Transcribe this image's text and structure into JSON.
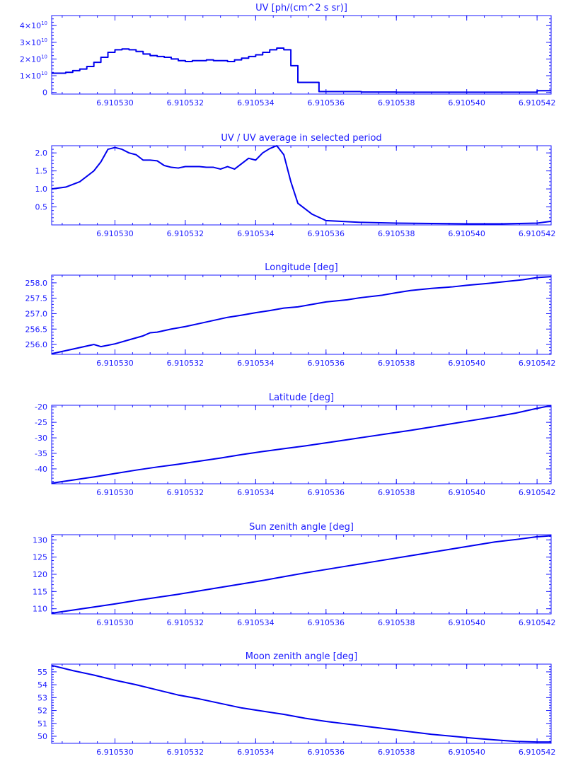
{
  "chart_data": [
    {
      "type": "line",
      "title": "UV [ph/(cm^2 s sr)]",
      "step": true,
      "xlim": [
        6.9105282,
        6.9105424
      ],
      "ylim": [
        -1000000000.0,
        46000000000.0
      ],
      "xticks": [
        6.91053,
        6.910532,
        6.910534,
        6.910536,
        6.910538,
        6.91054,
        6.910542
      ],
      "xtick_labels": [
        "6.910530",
        "6.910532",
        "6.910534",
        "6.910536",
        "6.910538",
        "6.910540",
        "6.910542"
      ],
      "yticks": [
        0,
        10000000000.0,
        20000000000.0,
        30000000000.0,
        40000000000.0
      ],
      "ytick_labels": [
        {
          "base": "0",
          "exp": ""
        },
        {
          "base": "1×10",
          "exp": "10"
        },
        {
          "base": "2×10",
          "exp": "10"
        },
        {
          "base": "3×10",
          "exp": "10"
        },
        {
          "base": "4×10",
          "exp": "10"
        }
      ],
      "x": [
        6.9105282,
        6.9105286,
        6.9105288,
        6.910529,
        6.9105292,
        6.9105294,
        6.9105296,
        6.9105298,
        6.91053,
        6.9105302,
        6.9105304,
        6.9105306,
        6.9105308,
        6.910531,
        6.9105312,
        6.9105314,
        6.9105316,
        6.9105318,
        6.910532,
        6.9105322,
        6.9105324,
        6.9105326,
        6.9105328,
        6.910533,
        6.9105332,
        6.9105334,
        6.9105336,
        6.9105338,
        6.910534,
        6.9105342,
        6.9105344,
        6.9105346,
        6.9105348,
        6.910535,
        6.9105352,
        6.9105354,
        6.9105356,
        6.9105358,
        6.910536,
        6.9105364,
        6.910537,
        6.910538,
        6.910539,
        6.91054,
        6.910541,
        6.910542,
        6.9105424
      ],
      "values": [
        11500000000.0,
        12000000000.0,
        13000000000.0,
        14000000000.0,
        15500000000.0,
        18000000000.0,
        21000000000.0,
        24000000000.0,
        25500000000.0,
        26000000000.0,
        25500000000.0,
        24500000000.0,
        23000000000.0,
        22000000000.0,
        21500000000.0,
        21000000000.0,
        20000000000.0,
        19000000000.0,
        18500000000.0,
        19000000000.0,
        19000000000.0,
        19500000000.0,
        19000000000.0,
        19000000000.0,
        18500000000.0,
        19500000000.0,
        20500000000.0,
        21500000000.0,
        22500000000.0,
        24000000000.0,
        25500000000.0,
        26500000000.0,
        25500000000.0,
        16000000000.0,
        6000000000.0,
        6000000000.0,
        6000000000.0,
        500000000.0,
        500000000.0,
        500000000.0,
        200000000.0,
        100000000.0,
        100000000.0,
        100000000.0,
        100000000.0,
        1000000000.0,
        1000000000.0
      ]
    },
    {
      "type": "line",
      "title": "UV / UV average in selected period",
      "xlim": [
        6.9105282,
        6.9105424
      ],
      "ylim": [
        0.0,
        2.2
      ],
      "xticks": [
        6.91053,
        6.910532,
        6.910534,
        6.910536,
        6.910538,
        6.91054,
        6.910542
      ],
      "xtick_labels": [
        "6.910530",
        "6.910532",
        "6.910534",
        "6.910536",
        "6.910538",
        "6.910540",
        "6.910542"
      ],
      "yticks": [
        0.5,
        1.0,
        1.5,
        2.0
      ],
      "ytick_labels": [
        "0.5",
        "1.0",
        "1.5",
        "2.0"
      ],
      "x": [
        6.9105282,
        6.9105286,
        6.910529,
        6.9105294,
        6.9105296,
        6.9105298,
        6.91053,
        6.9105302,
        6.9105304,
        6.9105306,
        6.9105308,
        6.910531,
        6.9105312,
        6.9105314,
        6.9105316,
        6.9105318,
        6.910532,
        6.9105322,
        6.9105324,
        6.9105326,
        6.9105328,
        6.910533,
        6.9105332,
        6.9105334,
        6.9105336,
        6.9105338,
        6.910534,
        6.9105342,
        6.9105344,
        6.9105346,
        6.9105348,
        6.910535,
        6.9105352,
        6.9105356,
        6.910536,
        6.910537,
        6.910538,
        6.910539,
        6.91054,
        6.910541,
        6.910542,
        6.9105424
      ],
      "values": [
        1.0,
        1.05,
        1.2,
        1.5,
        1.75,
        2.1,
        2.15,
        2.1,
        2.0,
        1.95,
        1.8,
        1.8,
        1.78,
        1.65,
        1.6,
        1.58,
        1.62,
        1.62,
        1.62,
        1.6,
        1.6,
        1.55,
        1.62,
        1.55,
        1.7,
        1.85,
        1.8,
        2.0,
        2.12,
        2.2,
        1.95,
        1.2,
        0.6,
        0.3,
        0.12,
        0.07,
        0.05,
        0.04,
        0.03,
        0.03,
        0.05,
        0.1
      ]
    },
    {
      "type": "line",
      "title": "Longitude [deg]",
      "xlim": [
        6.9105282,
        6.9105424
      ],
      "ylim": [
        255.68,
        258.25
      ],
      "xticks": [
        6.91053,
        6.910532,
        6.910534,
        6.910536,
        6.910538,
        6.91054,
        6.910542
      ],
      "xtick_labels": [
        "6.910530",
        "6.910532",
        "6.910534",
        "6.910536",
        "6.910538",
        "6.910540",
        "6.910542"
      ],
      "yticks": [
        256.0,
        256.5,
        257.0,
        257.5,
        258.0
      ],
      "ytick_labels": [
        "256.0",
        "256.5",
        "257.0",
        "257.5",
        "258.0"
      ],
      "x": [
        6.9105282,
        6.9105288,
        6.9105294,
        6.9105296,
        6.91053,
        6.9105304,
        6.9105308,
        6.910531,
        6.9105312,
        6.9105316,
        6.910532,
        6.9105324,
        6.9105328,
        6.9105332,
        6.9105336,
        6.910534,
        6.9105344,
        6.9105348,
        6.910535,
        6.9105352,
        6.9105356,
        6.910536,
        6.9105366,
        6.910537,
        6.9105376,
        6.910538,
        6.9105384,
        6.910539,
        6.9105396,
        6.91054,
        6.9105406,
        6.910541,
        6.9105416,
        6.910542,
        6.9105424
      ],
      "values": [
        255.7,
        255.85,
        256.0,
        255.93,
        256.02,
        256.15,
        256.28,
        256.38,
        256.4,
        256.5,
        256.58,
        256.68,
        256.78,
        256.88,
        256.95,
        257.03,
        257.1,
        257.18,
        257.2,
        257.22,
        257.3,
        257.38,
        257.45,
        257.52,
        257.6,
        257.68,
        257.75,
        257.82,
        257.87,
        257.92,
        257.98,
        258.03,
        258.1,
        258.17,
        258.2
      ]
    },
    {
      "type": "line",
      "title": "Latitude [deg]",
      "xlim": [
        6.9105282,
        6.9105424
      ],
      "ylim": [
        -44.8,
        -19.5
      ],
      "xticks": [
        6.91053,
        6.910532,
        6.910534,
        6.910536,
        6.910538,
        6.91054,
        6.910542
      ],
      "xtick_labels": [
        "6.910530",
        "6.910532",
        "6.910534",
        "6.910536",
        "6.910538",
        "6.910540",
        "6.910542"
      ],
      "yticks": [
        -40,
        -35,
        -30,
        -25,
        -20
      ],
      "ytick_labels": [
        "-40",
        "-35",
        "-30",
        "-25",
        "-20"
      ],
      "x": [
        6.9105282,
        6.9105288,
        6.9105294,
        6.91053,
        6.9105306,
        6.9105312,
        6.9105318,
        6.9105324,
        6.910533,
        6.9105336,
        6.9105342,
        6.9105348,
        6.9105354,
        6.910536,
        6.9105366,
        6.9105372,
        6.9105378,
        6.9105384,
        6.910539,
        6.9105396,
        6.9105402,
        6.9105408,
        6.9105414,
        6.910542,
        6.9105424
      ],
      "values": [
        -44.6,
        -43.6,
        -42.6,
        -41.5,
        -40.4,
        -39.4,
        -38.5,
        -37.5,
        -36.5,
        -35.4,
        -34.4,
        -33.5,
        -32.6,
        -31.6,
        -30.6,
        -29.6,
        -28.6,
        -27.6,
        -26.5,
        -25.4,
        -24.3,
        -23.2,
        -22.0,
        -20.5,
        -19.6
      ]
    },
    {
      "type": "line",
      "title": "Sun zenith angle [deg]",
      "xlim": [
        6.9105282,
        6.9105424
      ],
      "ylim": [
        108.5,
        131.5
      ],
      "xticks": [
        6.91053,
        6.910532,
        6.910534,
        6.910536,
        6.910538,
        6.91054,
        6.910542
      ],
      "xtick_labels": [
        "6.910530",
        "6.910532",
        "6.910534",
        "6.910536",
        "6.910538",
        "6.910540",
        "6.910542"
      ],
      "yticks": [
        110,
        115,
        120,
        125,
        130
      ],
      "ytick_labels": [
        "110",
        "115",
        "120",
        "125",
        "130"
      ],
      "x": [
        6.9105282,
        6.9105288,
        6.9105294,
        6.91053,
        6.9105306,
        6.9105312,
        6.9105318,
        6.9105324,
        6.910533,
        6.9105336,
        6.9105342,
        6.9105348,
        6.9105354,
        6.910536,
        6.9105366,
        6.9105372,
        6.9105378,
        6.9105384,
        6.910539,
        6.9105396,
        6.9105402,
        6.9105408,
        6.9105414,
        6.910542,
        6.9105424
      ],
      "values": [
        108.7,
        109.6,
        110.5,
        111.4,
        112.4,
        113.3,
        114.2,
        115.2,
        116.2,
        117.2,
        118.2,
        119.3,
        120.4,
        121.4,
        122.4,
        123.4,
        124.4,
        125.4,
        126.4,
        127.4,
        128.4,
        129.4,
        130.1,
        130.9,
        131.2
      ]
    },
    {
      "type": "line",
      "title": "Moon zenith angle [deg]",
      "xlim": [
        6.9105282,
        6.9105424
      ],
      "ylim": [
        49.45,
        55.6
      ],
      "xticks": [
        6.91053,
        6.910532,
        6.910534,
        6.910536,
        6.910538,
        6.91054,
        6.910542
      ],
      "xtick_labels": [
        "6.910530",
        "6.910532",
        "6.910534",
        "6.910536",
        "6.910538",
        "6.910540",
        "6.910542"
      ],
      "yticks": [
        50,
        51,
        52,
        53,
        54,
        55
      ],
      "ytick_labels": [
        "50",
        "51",
        "52",
        "53",
        "54",
        "55"
      ],
      "x": [
        6.9105282,
        6.9105288,
        6.9105294,
        6.91053,
        6.9105306,
        6.9105312,
        6.9105318,
        6.9105324,
        6.910533,
        6.9105336,
        6.9105342,
        6.9105348,
        6.9105354,
        6.910536,
        6.9105366,
        6.9105372,
        6.9105378,
        6.9105384,
        6.910539,
        6.9105396,
        6.9105402,
        6.9105408,
        6.9105414,
        6.910542,
        6.9105424
      ],
      "values": [
        55.5,
        55.1,
        54.75,
        54.35,
        54.0,
        53.6,
        53.2,
        52.9,
        52.55,
        52.2,
        51.95,
        51.7,
        51.4,
        51.15,
        50.95,
        50.75,
        50.55,
        50.35,
        50.15,
        50.0,
        49.85,
        49.72,
        49.6,
        49.55,
        49.55
      ]
    }
  ]
}
